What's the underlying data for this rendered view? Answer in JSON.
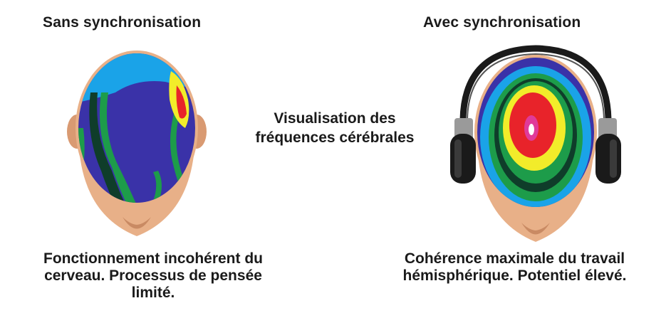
{
  "left": {
    "title": "Sans synchronisation",
    "caption_line1": "Fonctionnement incohérent du",
    "caption_line2": "cerveau. Processus de pensée",
    "caption_line3": "limité."
  },
  "right": {
    "title": "Avec synchronisation",
    "caption_line1": "Cohérence maximale du travail",
    "caption_line2": "hémisphérique. Potentiel élevé."
  },
  "center": {
    "line1": "Visualisation des",
    "line2": "fréquences cérébrales"
  },
  "colors": {
    "skin": "#e8b088",
    "skin_dark": "#c98a63",
    "blue": "#3a32a8",
    "cyan": "#1aa3e8",
    "green": "#1d9c4a",
    "dark_green": "#0f3d2a",
    "yellow": "#f2ec2a",
    "red": "#e8232a",
    "magenta": "#e03a9a"
  }
}
